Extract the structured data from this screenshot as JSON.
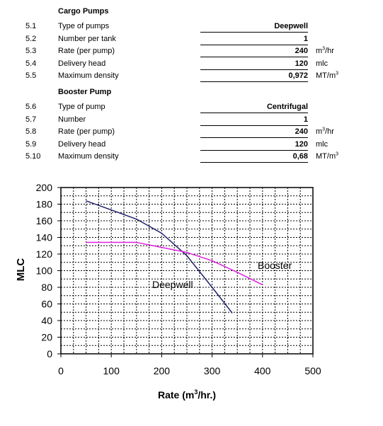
{
  "table": {
    "cargo_title": "Cargo Pumps",
    "booster_title": "Booster Pump",
    "cargo_rows": [
      {
        "num": "5.1",
        "label": "Type of pumps",
        "value": "Deepwell",
        "unit": "",
        "unit_sup": "",
        "unit_tail": ""
      },
      {
        "num": "5.2",
        "label": "Number per tank",
        "value": "1",
        "unit": "",
        "unit_sup": "",
        "unit_tail": ""
      },
      {
        "num": "5.3",
        "label": "Rate (per pump)",
        "value": "240",
        "unit": "m",
        "unit_sup": "3",
        "unit_tail": "/hr"
      },
      {
        "num": "5.4",
        "label": "Delivery head",
        "value": "120",
        "unit": "mlc",
        "unit_sup": "",
        "unit_tail": ""
      },
      {
        "num": "5.5",
        "label": "Maximum density",
        "value": "0,972",
        "unit": "MT/m",
        "unit_sup": "3",
        "unit_tail": ""
      }
    ],
    "booster_rows": [
      {
        "num": "5.6",
        "label": "Type of pump",
        "value": "Centrifugal",
        "unit": "",
        "unit_sup": "",
        "unit_tail": ""
      },
      {
        "num": "5.7",
        "label": "Number",
        "value": "1",
        "unit": "",
        "unit_sup": "",
        "unit_tail": ""
      },
      {
        "num": "5.8",
        "label": "Rate (per pump)",
        "value": "240",
        "unit": "m",
        "unit_sup": "3",
        "unit_tail": "/hr"
      },
      {
        "num": "5.9",
        "label": "Delivery head",
        "value": "120",
        "unit": "mlc",
        "unit_sup": "",
        "unit_tail": ""
      },
      {
        "num": "5.10",
        "label": "Maximum density",
        "value": "0,68",
        "unit": "MT/m",
        "unit_sup": "3",
        "unit_tail": ""
      }
    ]
  },
  "chart_data": {
    "type": "line",
    "title": "",
    "xlabel": "Rate (m",
    "xlabel_sup": "3",
    "xlabel_tail": "/hr.)",
    "ylabel": "MLC",
    "xlim": [
      0,
      500
    ],
    "ylim": [
      0,
      200
    ],
    "x_ticks": [
      0,
      100,
      200,
      300,
      400,
      500
    ],
    "y_ticks": [
      0,
      20,
      40,
      60,
      80,
      100,
      120,
      140,
      160,
      180,
      200
    ],
    "grid": true,
    "grid_style": "dotted",
    "series": [
      {
        "name": "Deepwell",
        "color": "#1f1f6e",
        "x": [
          50,
          100,
          150,
          200,
          250,
          300,
          340
        ],
        "y": [
          184,
          173,
          162,
          145,
          118,
          80,
          49
        ]
      },
      {
        "name": "Booster",
        "color": "#e020e0",
        "x": [
          50,
          100,
          150,
          200,
          250,
          300,
          350,
          400
        ],
        "y": [
          134,
          134,
          134,
          128,
          122,
          112,
          98,
          83
        ]
      }
    ]
  }
}
